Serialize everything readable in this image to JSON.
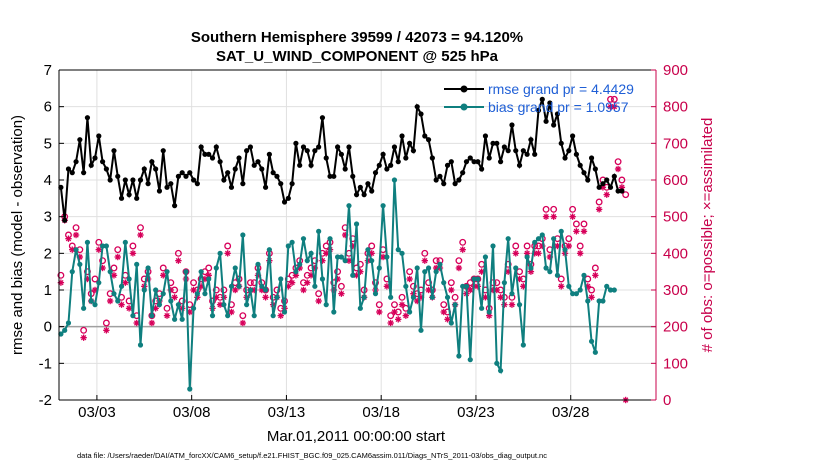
{
  "chart_data": {
    "type": "line",
    "title": "Southern Hemisphere 39599 / 42073 = 94.120%",
    "subtitle": "SAT_U_WIND_COMPONENT @ 525 hPa",
    "xlabel": "Mar.01,2011 00:00:00 start",
    "ylabel_left": "rmse and bias (model - observation)",
    "ylabel_right": "# of obs: o=possible; ×=assimilated",
    "xlim": [
      0,
      31.5
    ],
    "ylim_left": [
      -2,
      7
    ],
    "ylim_right": [
      0,
      900
    ],
    "x_ticks": [
      {
        "day": 2,
        "label": "03/03"
      },
      {
        "day": 7,
        "label": "03/08"
      },
      {
        "day": 12,
        "label": "03/13"
      },
      {
        "day": 17,
        "label": "03/18"
      },
      {
        "day": 22,
        "label": "03/23"
      },
      {
        "day": 27,
        "label": "03/28"
      }
    ],
    "y_ticks_left": [
      -2,
      -1,
      0,
      1,
      2,
      3,
      4,
      5,
      6,
      7
    ],
    "y_ticks_right": [
      0,
      100,
      200,
      300,
      400,
      500,
      600,
      700,
      800,
      900
    ],
    "grid": true,
    "legend_position": "top-right",
    "colors": {
      "rmse": "#000000",
      "bias": "#0f7f7f",
      "obs": "#d7005a",
      "zero_line": "#a0a0a0",
      "grid": "#e0e0e0",
      "legend_text": "#1f5fd6",
      "right_axis": "#c8004b"
    },
    "series": [
      {
        "name": "rmse grand pr = 4.4429",
        "axis": "left",
        "marker": "filled-circle",
        "values": [
          3.8,
          2.9,
          4.3,
          4.2,
          4.5,
          5.1,
          4.2,
          5.7,
          4.4,
          4.6,
          5.2,
          4.5,
          4.3,
          4.0,
          4.8,
          4.1,
          3.5,
          4.0,
          3.6,
          4.0,
          3.5,
          4.0,
          4.3,
          3.9,
          4.5,
          4.3,
          3.7,
          4.8,
          3.8,
          3.9,
          3.3,
          4.1,
          4.2,
          4.1,
          4.2,
          4.0,
          3.9,
          4.9,
          4.7,
          4.7,
          4.6,
          4.9,
          4.5,
          4.0,
          4.2,
          3.8,
          4.3,
          4.6,
          3.9,
          4.8,
          4.9,
          4.4,
          4.5,
          4.3,
          3.8,
          4.7,
          4.2,
          4.1,
          3.9,
          3.4,
          3.5,
          3.9,
          5.0,
          4.4,
          4.9,
          4.8,
          4.4,
          4.8,
          4.9,
          5.7,
          4.6,
          4.1,
          4.1,
          4.9,
          4.7,
          4.3,
          4.9,
          4.1,
          3.6,
          3.8,
          3.6,
          3.9,
          3.7,
          4.2,
          4.4,
          4.7,
          4.3,
          4.4,
          4.9,
          4.5,
          5.2,
          4.6,
          5.0,
          4.8,
          6.0,
          5.8,
          5.2,
          5.1,
          4.6,
          4.0,
          4.1,
          3.9,
          4.4,
          4.5,
          3.9,
          4.0,
          4.2,
          4.5,
          4.6,
          4.5,
          4.5,
          4.3,
          5.2,
          4.6,
          5.0,
          5.0,
          4.5,
          4.9,
          4.8,
          5.5,
          4.8,
          4.4,
          4.8,
          4.7,
          5.1,
          4.7,
          5.9,
          6.2,
          5.6,
          6.1,
          5.5,
          5.8,
          5.0,
          4.6,
          4.8,
          5.2,
          4.7,
          4.4,
          4.2,
          4.0,
          4.6,
          4.3,
          3.8,
          3.9,
          4.0,
          3.8,
          4.1,
          3.7,
          3.7
        ]
      },
      {
        "name": "bias grand pr = 1.0957",
        "axis": "left",
        "marker": "filled-circle",
        "values": [
          -0.2,
          -0.1,
          0.1,
          1.5,
          2.1,
          1.7,
          0.5,
          2.3,
          0.7,
          0.6,
          1.2,
          2.2,
          2.2,
          1.5,
          0.9,
          0.7,
          1.1,
          2.3,
          1.3,
          0.3,
          1.7,
          -0.5,
          1.0,
          1.6,
          0.3,
          1.0,
          0.6,
          0.9,
          1.5,
          0.7,
          0.2,
          0.6,
          0.2,
          1.5,
          -1.7,
          0.5,
          0.9,
          1.5,
          0.9,
          1.3,
          0.3,
          1.6,
          2.0,
          0.6,
          0.3,
          1.1,
          1.6,
          1.1,
          2.5,
          0.6,
          1.0,
          0.3,
          1.7,
          1.1,
          1.0,
          2.1,
          0.3,
          0.8,
          1.3,
          0.4,
          2.2,
          2.3,
          1.5,
          1.7,
          2.4,
          1.8,
          2.0,
          1.1,
          2.6,
          1.3,
          0.6,
          2.4,
          0.4,
          1.9,
          1.9,
          1.8,
          3.3,
          1.4,
          2.8,
          0.5,
          0.8,
          2.1,
          1.8,
          0.9,
          1.6,
          3.3,
          1.9,
          0.8,
          4.0,
          2.1,
          2.0,
          1.1,
          0.4,
          0.8,
          1.6,
          -0.1,
          1.5,
          1.6,
          0.8,
          1.5,
          1.7,
          1.2,
          0.8,
          0.1,
          0.6,
          -0.8,
          1.1,
          1.1,
          -0.9,
          1.3,
          1.3,
          0.5,
          1.9,
          0.4,
          2.2,
          -1.0,
          -1.2,
          1.2,
          2.4,
          0.9,
          1.6,
          0.6,
          -0.5,
          1.9,
          1.6,
          2.3,
          2.4,
          2.5,
          1.6,
          1.5,
          2.4,
          1.4,
          2.6,
          2.1,
          1.1,
          0.9,
          0.9,
          1.0,
          1.4,
          0.7,
          -0.4,
          -0.7,
          0.7,
          0.7,
          1.1,
          1.0,
          1.0
        ]
      },
      {
        "name": "possible",
        "axis": "right",
        "marker": "open-circle",
        "values": [
          340,
          500,
          450,
          420,
          470,
          410,
          190,
          350,
          290,
          330,
          430,
          380,
          210,
          290,
          360,
          410,
          280,
          340,
          270,
          420,
          230,
          470,
          330,
          350,
          230,
          270,
          290,
          360,
          250,
          320,
          300,
          400,
          270,
          350,
          260,
          320,
          300,
          330,
          350,
          360,
          270,
          300,
          280,
          300,
          420,
          260,
          320,
          330,
          230,
          300,
          320,
          320,
          360,
          320,
          300,
          400,
          280,
          300,
          250,
          270,
          330,
          340,
          360,
          380,
          320,
          340,
          360,
          380,
          290,
          400,
          420,
          430,
          320,
          350,
          310,
          470,
          400,
          440,
          360,
          370,
          300,
          400,
          420,
          320,
          260,
          410,
          330,
          230,
          260,
          240,
          280,
          250,
          350,
          310,
          290,
          300,
          400,
          320,
          300,
          380,
          380,
          260,
          240,
          320,
          280,
          380,
          430,
          310,
          320,
          330,
          330,
          370,
          300,
          250,
          320,
          320,
          300,
          280,
          370,
          280,
          420,
          350,
          330,
          420,
          370,
          420,
          420,
          440,
          520,
          410,
          520,
          440,
          330,
          420,
          440,
          520,
          480,
          420,
          480,
          330,
          300,
          360,
          540,
          600,
          580,
          820,
          820,
          650,
          600,
          560
        ]
      },
      {
        "name": "assimilated",
        "axis": "right",
        "marker": "x-star",
        "values": [
          320,
          490,
          440,
          410,
          450,
          390,
          170,
          330,
          270,
          300,
          410,
          360,
          190,
          270,
          340,
          390,
          260,
          320,
          250,
          400,
          210,
          450,
          310,
          330,
          210,
          250,
          270,
          340,
          230,
          300,
          280,
          380,
          250,
          330,
          240,
          300,
          280,
          310,
          330,
          340,
          250,
          280,
          260,
          280,
          400,
          240,
          300,
          310,
          210,
          280,
          300,
          300,
          340,
          300,
          280,
          380,
          260,
          280,
          230,
          250,
          310,
          320,
          340,
          360,
          300,
          320,
          340,
          360,
          270,
          380,
          400,
          410,
          300,
          330,
          290,
          450,
          380,
          420,
          340,
          350,
          280,
          380,
          400,
          300,
          240,
          390,
          310,
          210,
          240,
          220,
          260,
          230,
          330,
          290,
          270,
          280,
          380,
          300,
          280,
          360,
          360,
          240,
          220,
          300,
          260,
          360,
          410,
          290,
          300,
          310,
          310,
          350,
          280,
          230,
          300,
          300,
          280,
          260,
          350,
          260,
          400,
          330,
          310,
          400,
          350,
          400,
          400,
          420,
          500,
          390,
          500,
          420,
          310,
          400,
          420,
          500,
          460,
          400,
          460,
          310,
          280,
          340,
          520,
          580,
          560,
          800,
          800,
          630,
          580,
          0
        ]
      }
    ],
    "legend": [
      {
        "label": "rmse grand pr = 4.4429",
        "series": "rmse"
      },
      {
        "label": "bias grand pr = 1.0957",
        "series": "bias"
      }
    ]
  },
  "footer": "data file: /Users/raeder/DAI/ATM_forcXX/CAM6_setup/f.e21.FHIST_BGC.f09_025.CAM6assim.011/Diags_NTrS_2011-03/obs_diag_output.nc"
}
